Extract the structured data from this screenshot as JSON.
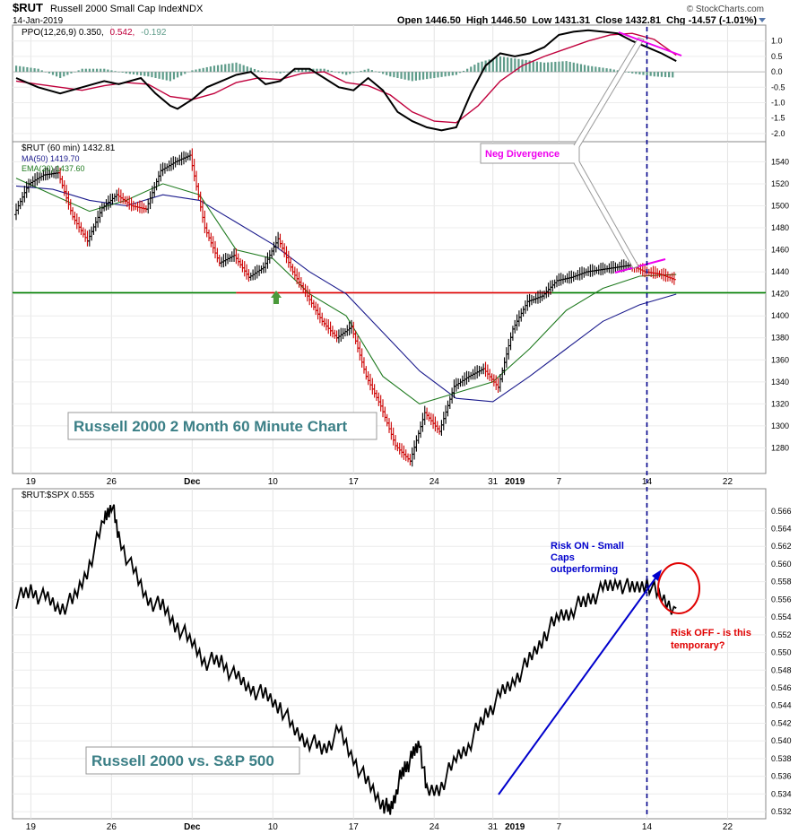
{
  "header": {
    "symbol": "$RUT",
    "name": "Russell 2000 Small Cap Index",
    "exchange": "INDX",
    "date": "14-Jan-2019",
    "source": "© StockCharts.com",
    "ohlc": "Open 1446.50  High 1446.50  Low 1431.31  Close 1432.81  Chg -14.57 (-1.01%)"
  },
  "colors": {
    "price_up": "#000000",
    "price_down": "#cc0000",
    "ma50": "#1a1a8c",
    "ema20": "#1f7a1f",
    "ppo_line": "#000000",
    "ppo_signal": "#c0003c",
    "ppo_hist": "#5f9c8a",
    "support_green": "#008000",
    "resistance_red": "#e00000",
    "divergence": "#ee00ee",
    "arrow_blue": "#0000cc",
    "annot_red": "#e00000",
    "vline": "#00008b"
  },
  "chart_data": [
    {
      "panel": "ppo",
      "type": "line",
      "legend": "PPO(12,26,9) 0.350, 0.542, -0.192",
      "legend_parts": [
        "PPO(12,26,9) 0.350,",
        "0.542,",
        "-0.192"
      ],
      "y_ticks": [
        "1.0",
        "0.5",
        "0.0",
        "-0.5",
        "-1.0",
        "-1.5",
        "-2.0"
      ],
      "ylim": [
        -2.15,
        1.4
      ],
      "series": [
        {
          "name": "PPO",
          "x": [
            0,
            3,
            6,
            9,
            12,
            14,
            17,
            19,
            21,
            22,
            24,
            26,
            28,
            30,
            32,
            34,
            36,
            38,
            40,
            42,
            44,
            46,
            48,
            50,
            52,
            54,
            56,
            58,
            60,
            62,
            64,
            66,
            68,
            70,
            72,
            74,
            76,
            78,
            80,
            82,
            84,
            86,
            88,
            90
          ],
          "values": [
            -0.2,
            -0.5,
            -0.7,
            -0.5,
            -0.3,
            -0.4,
            -0.2,
            -0.7,
            -1.1,
            -1.2,
            -0.9,
            -0.5,
            -0.3,
            -0.1,
            0.0,
            -0.4,
            -0.3,
            0.1,
            0.1,
            -0.2,
            -0.5,
            -0.6,
            -0.2,
            -0.6,
            -1.3,
            -1.6,
            -1.8,
            -1.9,
            -1.8,
            -0.7,
            0.2,
            0.6,
            0.5,
            0.6,
            0.8,
            1.2,
            1.3,
            1.35,
            1.3,
            1.25,
            1.0,
            0.8,
            0.6,
            0.35
          ]
        },
        {
          "name": "Signal",
          "x": [
            0,
            3,
            6,
            9,
            12,
            15,
            18,
            21,
            24,
            27,
            30,
            33,
            36,
            39,
            42,
            45,
            48,
            51,
            54,
            57,
            60,
            63,
            66,
            69,
            72,
            75,
            78,
            81,
            84,
            87,
            90
          ],
          "values": [
            -0.3,
            -0.4,
            -0.5,
            -0.6,
            -0.45,
            -0.35,
            -0.4,
            -0.8,
            -0.9,
            -0.7,
            -0.35,
            -0.2,
            -0.25,
            -0.05,
            0.0,
            -0.35,
            -0.45,
            -0.75,
            -1.3,
            -1.6,
            -1.65,
            -1.1,
            -0.3,
            0.2,
            0.5,
            0.75,
            1.0,
            1.2,
            1.25,
            1.05,
            0.54
          ]
        },
        {
          "name": "Histogram",
          "x": [
            0,
            3,
            6,
            9,
            12,
            15,
            18,
            21,
            24,
            27,
            30,
            33,
            36,
            39,
            42,
            45,
            48,
            51,
            54,
            57,
            60,
            63,
            66,
            69,
            72,
            75,
            78,
            81,
            84,
            87,
            90
          ],
          "values": [
            0.2,
            0.1,
            -0.2,
            0.1,
            0.1,
            -0.05,
            -0.15,
            -0.3,
            0.05,
            0.2,
            0.3,
            0.05,
            -0.05,
            0.1,
            0.1,
            -0.1,
            0.1,
            -0.15,
            -0.3,
            -0.2,
            -0.1,
            0.3,
            0.5,
            0.4,
            0.3,
            0.35,
            0.2,
            0.1,
            -0.05,
            -0.15,
            -0.19
          ]
        }
      ]
    },
    {
      "panel": "price",
      "type": "line",
      "legend": "$RUT (60 min) 1432.81",
      "ma_legend": "MA(50) 1419.70",
      "ema_legend": "EMA(20) 1437.60",
      "y_ticks": [
        1540,
        1520,
        1500,
        1480,
        1460,
        1440,
        1420,
        1400,
        1380,
        1360,
        1340,
        1320,
        1300,
        1280
      ],
      "ylim": [
        1260,
        1555
      ],
      "support_level": 1421,
      "series": [
        {
          "name": "$RUT",
          "x": [
            0,
            2,
            4,
            6,
            8,
            10,
            12,
            14,
            16,
            18,
            20,
            22,
            24,
            26,
            28,
            30,
            32,
            34,
            36,
            38,
            40,
            42,
            44,
            46,
            48,
            50,
            52,
            54,
            56,
            58,
            60,
            62,
            64,
            66,
            68,
            70,
            72,
            74,
            76,
            78,
            80,
            82,
            84,
            86,
            88,
            90
          ],
          "values": [
            1492,
            1520,
            1528,
            1530,
            1490,
            1468,
            1498,
            1510,
            1500,
            1497,
            1532,
            1540,
            1546,
            1480,
            1448,
            1455,
            1435,
            1444,
            1470,
            1440,
            1418,
            1395,
            1380,
            1390,
            1345,
            1318,
            1282,
            1268,
            1312,
            1295,
            1336,
            1345,
            1352,
            1335,
            1388,
            1413,
            1418,
            1432,
            1435,
            1440,
            1442,
            1444,
            1446,
            1440,
            1438,
            1433
          ]
        },
        {
          "name": "MA(50)",
          "x": [
            0,
            5,
            10,
            15,
            20,
            25,
            30,
            35,
            40,
            45,
            50,
            55,
            60,
            65,
            70,
            75,
            80,
            85,
            90
          ],
          "values": [
            1518,
            1515,
            1505,
            1500,
            1510,
            1505,
            1485,
            1465,
            1440,
            1420,
            1385,
            1350,
            1325,
            1322,
            1345,
            1370,
            1395,
            1410,
            1419.7
          ]
        },
        {
          "name": "EMA(20)",
          "x": [
            0,
            5,
            10,
            15,
            20,
            25,
            30,
            35,
            40,
            45,
            50,
            55,
            60,
            65,
            70,
            75,
            80,
            85,
            90
          ],
          "values": [
            1525,
            1510,
            1495,
            1505,
            1520,
            1510,
            1460,
            1452,
            1420,
            1400,
            1345,
            1320,
            1330,
            1340,
            1370,
            1405,
            1425,
            1436,
            1437.6
          ]
        }
      ]
    },
    {
      "panel": "ratio",
      "type": "line",
      "legend": "$RUT:$SPX 0.555",
      "y_ticks": [
        "0.566",
        "0.564",
        "0.562",
        "0.560",
        "0.558",
        "0.556",
        "0.554",
        "0.552",
        "0.550",
        "0.548",
        "0.546",
        "0.544",
        "0.542",
        "0.540",
        "0.538",
        "0.536",
        "0.534",
        "0.532"
      ],
      "ylim": [
        0.5315,
        0.5675
      ],
      "series": [
        {
          "name": "$RUT:$SPX",
          "x": [
            0,
            2,
            4,
            6,
            8,
            10,
            12,
            13,
            14,
            16,
            18,
            20,
            22,
            24,
            26,
            28,
            30,
            32,
            34,
            36,
            38,
            40,
            42,
            44,
            46,
            48,
            50,
            51,
            52,
            53,
            54,
            55,
            56,
            58,
            60,
            62,
            64,
            66,
            68,
            70,
            72,
            74,
            76,
            78,
            80,
            82,
            84,
            86,
            88,
            90
          ],
          "values": [
            0.556,
            0.557,
            0.556,
            0.555,
            0.556,
            0.56,
            0.565,
            0.567,
            0.563,
            0.559,
            0.556,
            0.555,
            0.553,
            0.551,
            0.549,
            0.549,
            0.547,
            0.546,
            0.545,
            0.544,
            0.541,
            0.54,
            0.539,
            0.541,
            0.538,
            0.535,
            0.533,
            0.532,
            0.535,
            0.537,
            0.538,
            0.54,
            0.534,
            0.535,
            0.538,
            0.54,
            0.543,
            0.545,
            0.547,
            0.549,
            0.552,
            0.554,
            0.555,
            0.556,
            0.557,
            0.558,
            0.557,
            0.558,
            0.556,
            0.555
          ]
        }
      ]
    }
  ],
  "x_axis": {
    "labels": [
      {
        "text": "19",
        "x": 2
      },
      {
        "text": "26",
        "x": 13
      },
      {
        "text": "Dec",
        "x": 24
      },
      {
        "text": "10",
        "x": 35
      },
      {
        "text": "17",
        "x": 46
      },
      {
        "text": "24",
        "x": 57
      },
      {
        "text": "31",
        "x": 65
      },
      {
        "text": "2019",
        "x": 68
      },
      {
        "text": "7",
        "x": 74
      },
      {
        "text": "14",
        "x": 86
      },
      {
        "text": "22",
        "x": 97
      }
    ],
    "xlim": [
      0,
      100
    ],
    "marker_x": 86
  },
  "annotations": {
    "price_title": "Russell 2000 2 Month 60 Minute Chart",
    "ratio_title": "Russell 2000 vs. S&P 500",
    "neg_divergence": "Neg Divergence",
    "risk_on": [
      "Risk ON - Small",
      "Caps",
      "outperforming"
    ],
    "risk_off": [
      "Risk OFF - is this",
      "temporary?"
    ]
  }
}
